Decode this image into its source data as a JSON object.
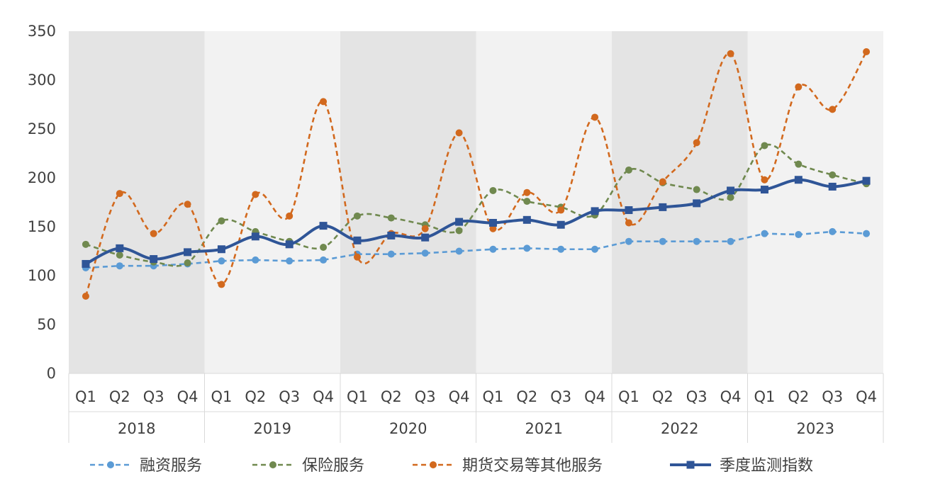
{
  "chart_data": {
    "type": "line",
    "title": "",
    "xlabel": "",
    "ylabel": "",
    "ylim": [
      0,
      350
    ],
    "yticks": [
      0,
      50,
      100,
      150,
      200,
      250,
      300,
      350
    ],
    "years": [
      "2018",
      "2019",
      "2020",
      "2021",
      "2022",
      "2023"
    ],
    "quarters": [
      "Q1",
      "Q2",
      "Q3",
      "Q4"
    ],
    "legend_position": "bottom",
    "series": [
      {
        "name": "融资服务",
        "color": "#5B9BD5",
        "style": "dashed",
        "marker": "circle",
        "smooth": false,
        "values": [
          108,
          110,
          110,
          112,
          115,
          116,
          115,
          116,
          122,
          122,
          123,
          125,
          127,
          128,
          127,
          127,
          135,
          135,
          135,
          135,
          143,
          142,
          145,
          143
        ]
      },
      {
        "name": "保险服务",
        "color": "#70894F",
        "style": "dashed",
        "marker": "circle",
        "smooth": true,
        "values": [
          132,
          121,
          114,
          113,
          156,
          145,
          135,
          129,
          161,
          159,
          152,
          146,
          187,
          176,
          170,
          162,
          208,
          195,
          188,
          180,
          233,
          214,
          203,
          194
        ]
      },
      {
        "name": "期货交易等其他服务",
        "color": "#D2691E",
        "style": "dashed",
        "marker": "circle",
        "smooth": true,
        "values": [
          79,
          184,
          143,
          173,
          91,
          183,
          161,
          278,
          119,
          143,
          148,
          246,
          148,
          185,
          167,
          262,
          154,
          196,
          236,
          327,
          198,
          293,
          270,
          329
        ]
      },
      {
        "name": "季度监测指数",
        "color": "#2F5597",
        "style": "solid",
        "marker": "square",
        "smooth": true,
        "values": [
          112,
          128,
          117,
          124,
          127,
          140,
          132,
          151,
          136,
          141,
          139,
          155,
          154,
          157,
          152,
          166,
          167,
          170,
          174,
          187,
          188,
          198,
          191,
          197
        ]
      }
    ]
  }
}
